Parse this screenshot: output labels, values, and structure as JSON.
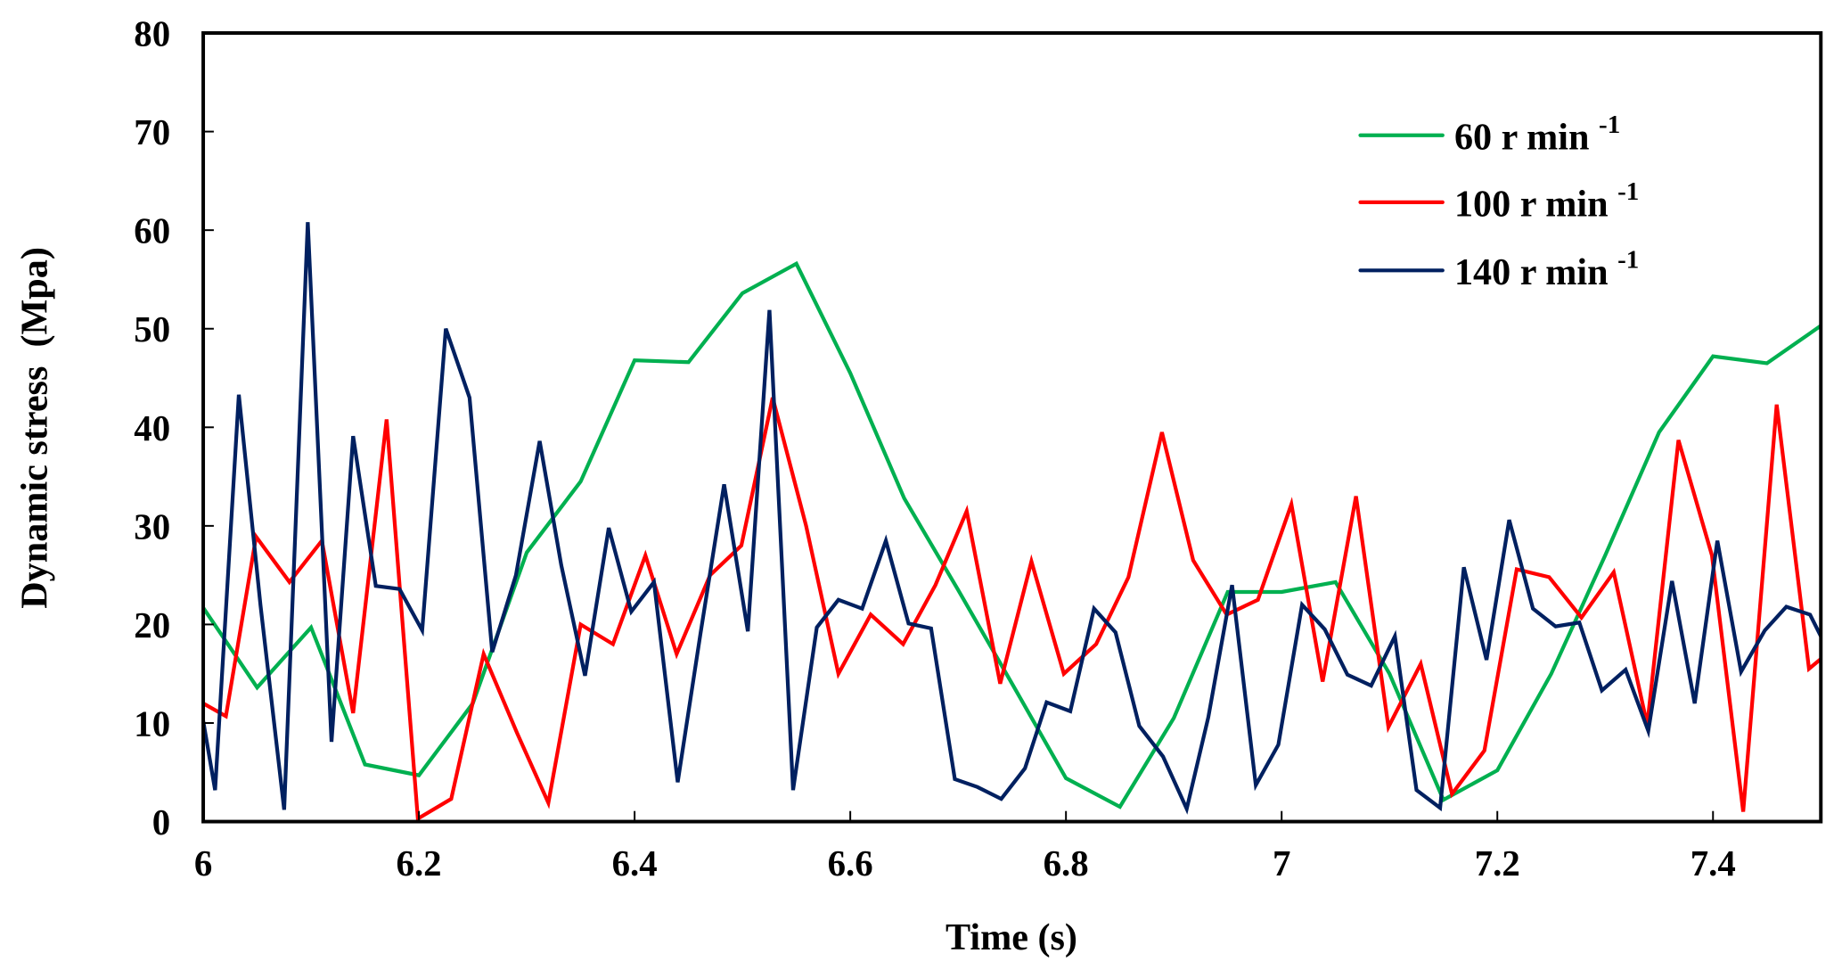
{
  "chart_data": {
    "type": "line",
    "title": "",
    "xlabel": "Time (s)",
    "ylabel": "Dynamic stress  (Mpa)",
    "xlim": [
      6,
      7.5
    ],
    "ylim": [
      0,
      80
    ],
    "xticks": [
      6,
      6.2,
      6.4,
      6.6,
      6.8,
      7,
      7.2,
      7.4
    ],
    "xtick_labels": [
      "6",
      "6.2",
      "6.4",
      "6.6",
      "6.8",
      "7",
      "7.2",
      "7.4"
    ],
    "yticks": [
      0,
      10,
      20,
      30,
      40,
      50,
      60,
      70,
      80
    ],
    "ytick_labels": [
      "0",
      "10",
      "20",
      "30",
      "40",
      "50",
      "60",
      "70",
      "80"
    ],
    "grid": false,
    "legend_position": "top-right",
    "series": [
      {
        "name": "60 r min",
        "name_sup": "-1",
        "color": "#00b050",
        "x": [
          6.0,
          6.05,
          6.1,
          6.15,
          6.2,
          6.25,
          6.3,
          6.35,
          6.4,
          6.45,
          6.5,
          6.55,
          6.6,
          6.65,
          6.7,
          6.75,
          6.8,
          6.85,
          6.9,
          6.95,
          7.0,
          7.05,
          7.1,
          7.15,
          7.2,
          7.25,
          7.3,
          7.35,
          7.4,
          7.45,
          7.5
        ],
        "y": [
          21.7,
          13.6,
          19.7,
          5.8,
          4.7,
          12,
          27.3,
          34.5,
          46.8,
          46.6,
          53.6,
          56.6,
          45.5,
          32.8,
          23.5,
          14,
          4.4,
          1.5,
          10.5,
          23.3,
          23.3,
          24.3,
          15,
          2.2,
          5.2,
          15,
          27,
          39.5,
          47.2,
          46.5,
          50.3
        ]
      },
      {
        "name": "100 r min",
        "name_sup": "-1",
        "color": "#ff0000",
        "x": [
          6.0,
          6.021,
          6.049,
          6.08,
          6.11,
          6.139,
          6.17,
          6.199,
          6.23,
          6.26,
          6.291,
          6.32,
          6.35,
          6.38,
          6.41,
          6.439,
          6.47,
          6.499,
          6.528,
          6.559,
          6.589,
          6.619,
          6.649,
          6.679,
          6.708,
          6.739,
          6.768,
          6.798,
          6.828,
          6.858,
          6.889,
          6.918,
          6.949,
          6.978,
          7.009,
          7.038,
          7.069,
          7.099,
          7.129,
          7.158,
          7.188,
          7.218,
          7.248,
          7.278,
          7.308,
          7.339,
          7.368,
          7.399,
          7.428,
          7.459,
          7.489,
          7.5
        ],
        "y": [
          12,
          10.7,
          28.9,
          24.3,
          28.5,
          11,
          40.8,
          0.3,
          2.3,
          17,
          9,
          1.9,
          20,
          18,
          27,
          17,
          25,
          28,
          43,
          30,
          15,
          21,
          18,
          24,
          31.5,
          14,
          26.4,
          15,
          18,
          24.8,
          39.5,
          26.5,
          21,
          22.5,
          32.2,
          14.2,
          33,
          9.6,
          16,
          2.8,
          7.2,
          25.6,
          24.8,
          20.7,
          25.3,
          9.8,
          38.7,
          27,
          1,
          42.3,
          15.5,
          16.5
        ]
      },
      {
        "name": "140 r min",
        "name_sup": "-1",
        "color": "#002060",
        "x": [
          6.0,
          6.011,
          6.033,
          6.053,
          6.075,
          6.097,
          6.119,
          6.139,
          6.16,
          6.182,
          6.203,
          6.225,
          6.247,
          6.268,
          6.29,
          6.312,
          6.332,
          6.354,
          6.376,
          6.397,
          6.418,
          6.44,
          6.461,
          6.483,
          6.505,
          6.525,
          6.547,
          6.569,
          6.589,
          6.611,
          6.633,
          6.654,
          6.675,
          6.697,
          6.718,
          6.74,
          6.762,
          6.782,
          6.804,
          6.826,
          6.846,
          6.868,
          6.89,
          6.912,
          6.932,
          6.954,
          6.976,
          6.997,
          7.019,
          7.04,
          7.061,
          7.083,
          7.105,
          7.125,
          7.147,
          7.169,
          7.19,
          7.211,
          7.233,
          7.254,
          7.276,
          7.297,
          7.319,
          7.34,
          7.362,
          7.383,
          7.404,
          7.426,
          7.448,
          7.468,
          7.49,
          7.5
        ],
        "y": [
          10.2,
          3.2,
          43.3,
          22,
          1.2,
          60.8,
          8.1,
          39.1,
          23.9,
          23.6,
          19.4,
          50,
          43,
          17.2,
          25,
          38.6,
          26,
          14.8,
          29.8,
          21.3,
          24.3,
          4,
          19,
          34.2,
          19.3,
          51.9,
          3.2,
          19.7,
          22.5,
          21.6,
          28.5,
          20.1,
          19.6,
          4.3,
          3.5,
          2.3,
          5.4,
          12.1,
          11.2,
          21.6,
          19.2,
          9.7,
          6.6,
          1.3,
          10.6,
          24,
          3.7,
          7.8,
          22,
          19.5,
          14.9,
          13.8,
          18.8,
          3.2,
          1.4,
          25.8,
          16.4,
          30.6,
          21.6,
          19.8,
          20.2,
          13.3,
          15.4,
          9.2,
          24.4,
          12,
          28.5,
          15.2,
          19.4,
          21.8,
          21,
          18.8
        ]
      }
    ]
  }
}
